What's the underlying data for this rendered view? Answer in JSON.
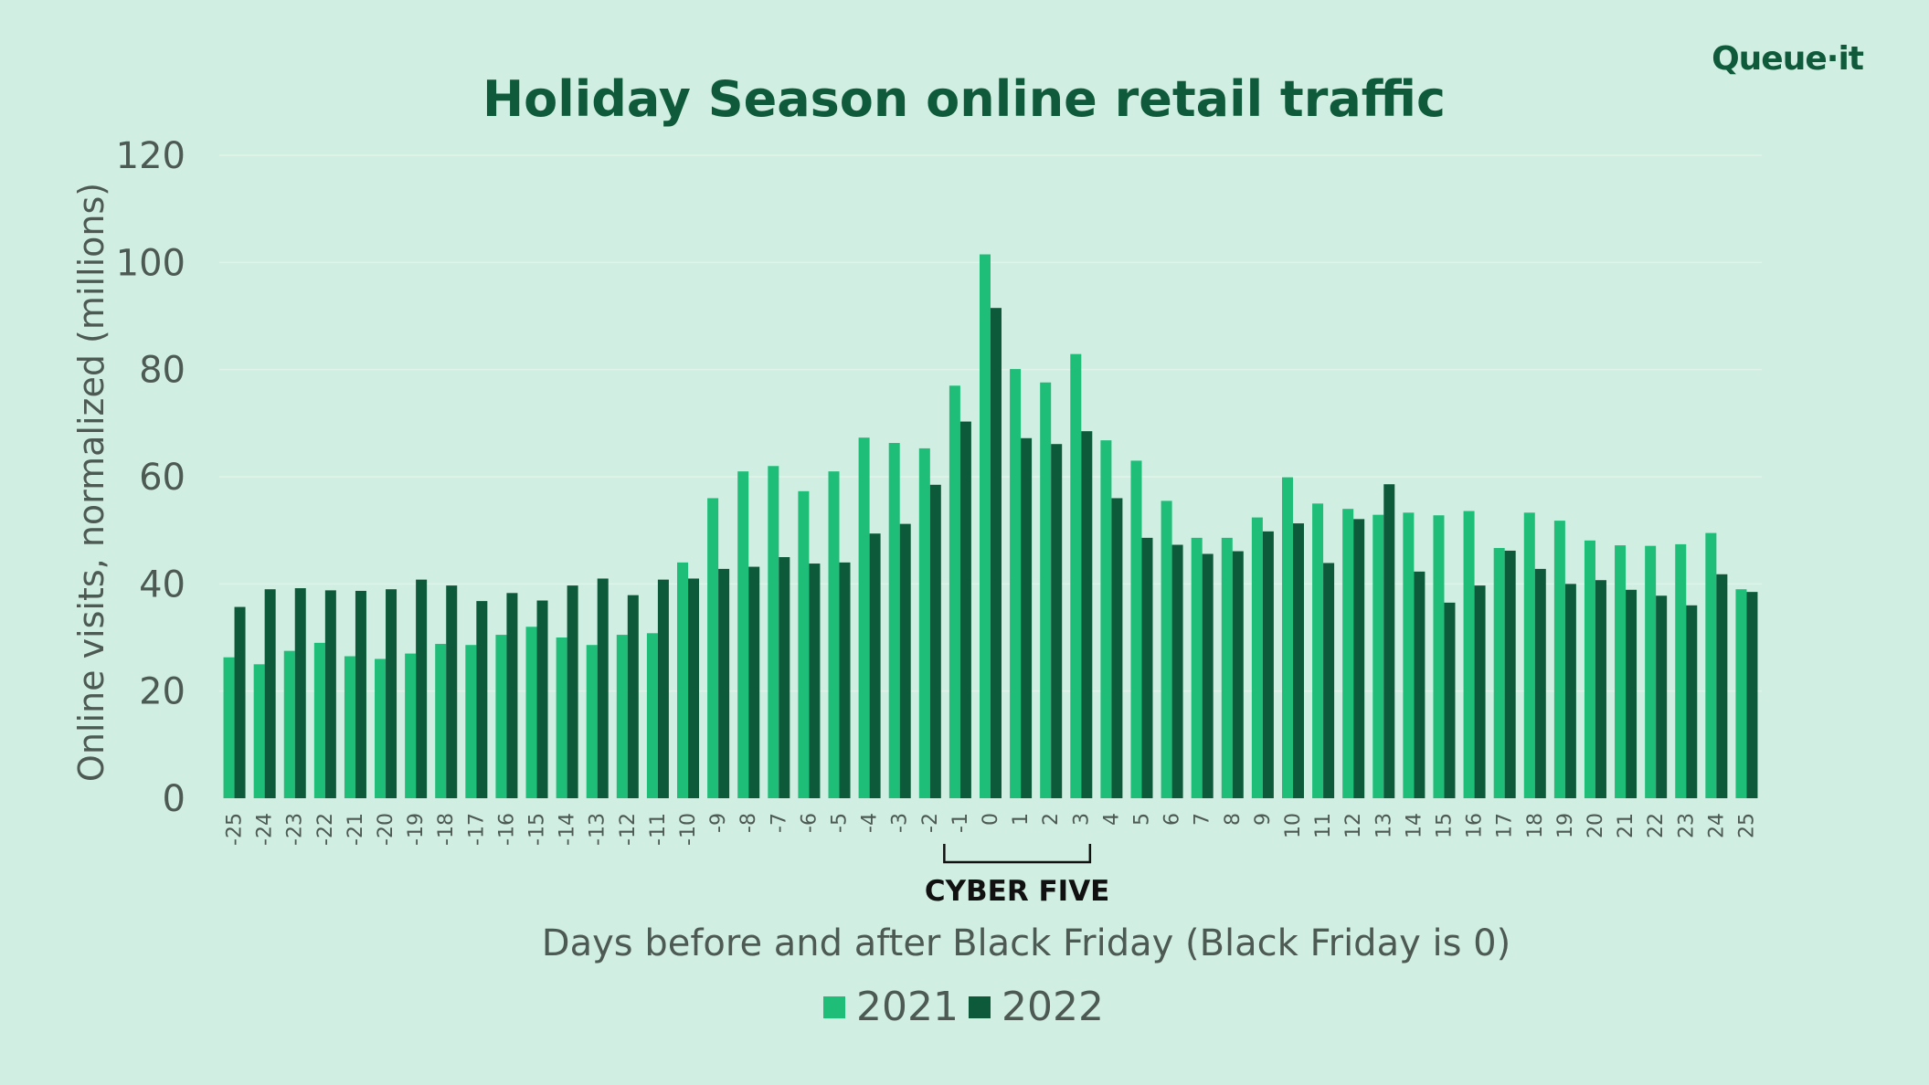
{
  "brand": {
    "logo_text": "Queue·it"
  },
  "colors": {
    "background": "#d0eee1",
    "series_2021": "#1ebd78",
    "series_2022": "#0d5a3a",
    "title": "#0e5a3a",
    "axis_text": "#4d5a54",
    "gridline": "#e2f3eb"
  },
  "annotation": {
    "label": "CYBER FIVE",
    "from_day": -1,
    "to_day": 3
  },
  "chart_data": {
    "type": "bar",
    "title": "Holiday Season online retail traffic",
    "xlabel": "Days before and after Black Friday (Black Friday is 0)",
    "ylabel": "Online visits, normalized (millions)",
    "ylim": [
      0,
      120
    ],
    "yticks": [
      0,
      20,
      40,
      60,
      80,
      100,
      120
    ],
    "grid": true,
    "legend_position": "bottom",
    "categories": [
      "-25",
      "-24",
      "-23",
      "-22",
      "-21",
      "-20",
      "-19",
      "-18",
      "-17",
      "-16",
      "-15",
      "-14",
      "-13",
      "-12",
      "-11",
      "-10",
      "-9",
      "-8",
      "-7",
      "-6",
      "-5",
      "-4",
      "-3",
      "-2",
      "-1",
      "0",
      "1",
      "2",
      "3",
      "4",
      "5",
      "6",
      "7",
      "8",
      "9",
      "10",
      "11",
      "12",
      "13",
      "14",
      "15",
      "16",
      "17",
      "18",
      "19",
      "20",
      "21",
      "22",
      "23",
      "24",
      "25"
    ],
    "series": [
      {
        "name": "2021",
        "values": [
          26.3,
          25,
          27.5,
          29,
          26.5,
          26,
          27,
          28.8,
          28.6,
          30.5,
          32,
          30,
          28.6,
          30.5,
          30.8,
          44,
          56,
          61,
          62,
          57.3,
          61,
          67.3,
          66.3,
          65.3,
          77,
          101.5,
          80.1,
          77.6,
          82.9,
          66.8,
          63,
          55.5,
          48.6,
          48.6,
          52.4,
          59.9,
          55,
          54,
          52.9,
          53.3,
          52.8,
          53.6,
          46.7,
          53.3,
          51.8,
          48.1,
          47.2,
          47.1,
          47.4,
          49.5,
          39
        ]
      },
      {
        "name": "2022",
        "values": [
          35.7,
          39,
          39.2,
          38.8,
          38.7,
          39,
          40.8,
          39.7,
          36.8,
          38.3,
          36.9,
          39.7,
          41,
          37.9,
          40.8,
          41,
          42.8,
          43.2,
          45,
          43.8,
          44,
          49.4,
          51.2,
          58.5,
          70.3,
          91.5,
          67.2,
          66.1,
          68.5,
          56,
          48.6,
          47.3,
          45.6,
          46.1,
          49.8,
          51.3,
          43.9,
          52.1,
          58.6,
          42.3,
          36.5,
          39.7,
          46.2,
          42.8,
          40,
          40.7,
          38.9,
          37.8,
          36,
          41.8,
          38.5
        ]
      }
    ]
  }
}
